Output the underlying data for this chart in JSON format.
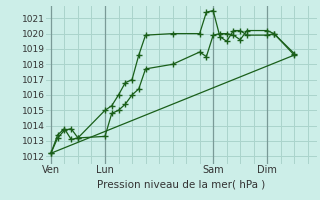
{
  "title": "",
  "xlabel": "Pression niveau de la mer( hPa )",
  "ylabel": "",
  "bg_color": "#cceee8",
  "grid_color": "#aad4cc",
  "line_color": "#1a5f1a",
  "vline_color": "#7a9a97",
  "xtick_labels": [
    "Ven",
    "Lun",
    "Sam",
    "Dim"
  ],
  "xtick_positions": [
    0,
    24,
    72,
    96
  ],
  "yticks": [
    1012,
    1013,
    1014,
    1015,
    1016,
    1017,
    1018,
    1019,
    1020,
    1021
  ],
  "ylim": [
    1011.5,
    1021.8
  ],
  "xlim": [
    -2,
    118
  ],
  "vline_positions": [
    0,
    24,
    72,
    96
  ],
  "line1_x": [
    0,
    3,
    6,
    9,
    12,
    24,
    27,
    30,
    33,
    36,
    39,
    42,
    54,
    66,
    69,
    72,
    75,
    78,
    81,
    84,
    87,
    96,
    99,
    108
  ],
  "line1_y": [
    1012.2,
    1013.2,
    1013.7,
    1013.8,
    1013.2,
    1013.3,
    1014.8,
    1015.0,
    1015.4,
    1016.0,
    1016.4,
    1017.7,
    1018.0,
    1018.8,
    1018.5,
    1019.9,
    1020.0,
    1020.0,
    1019.9,
    1019.6,
    1020.2,
    1020.2,
    1020.0,
    1018.6
  ],
  "line2_x": [
    0,
    3,
    6,
    9,
    12,
    24,
    27,
    30,
    33,
    36,
    39,
    42,
    54,
    66,
    69,
    72,
    75,
    78,
    81,
    84,
    87,
    96,
    99,
    108
  ],
  "line2_y": [
    1012.2,
    1013.4,
    1013.8,
    1013.1,
    1013.2,
    1015.0,
    1015.3,
    1016.0,
    1016.8,
    1017.0,
    1018.6,
    1019.9,
    1020.0,
    1020.0,
    1021.4,
    1021.5,
    1019.8,
    1019.5,
    1020.2,
    1020.2,
    1019.9,
    1019.9,
    1020.0,
    1018.7
  ],
  "line3_x": [
    0,
    108
  ],
  "line3_y": [
    1012.2,
    1018.6
  ]
}
